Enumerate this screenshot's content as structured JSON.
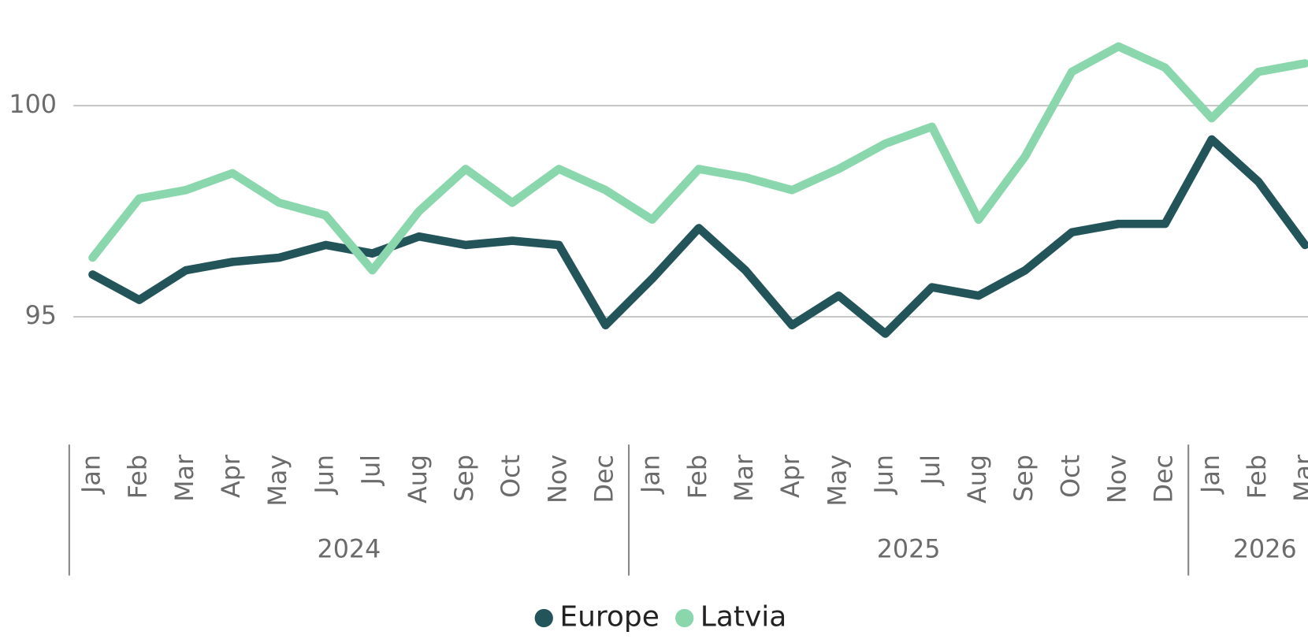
{
  "chart_data": {
    "type": "line",
    "categories": [
      "Jan",
      "Feb",
      "Mar",
      "Apr",
      "May",
      "Jun",
      "Jul",
      "Aug",
      "Sep",
      "Oct",
      "Nov",
      "Dec",
      "Jan",
      "Feb",
      "Mar",
      "Apr",
      "May",
      "Jun",
      "Jul",
      "Aug",
      "Sep",
      "Oct",
      "Nov",
      "Dec",
      "Jan",
      "Feb",
      "Mar"
    ],
    "years": [
      "2024",
      "2025",
      "2026"
    ],
    "series": [
      {
        "name": "Europe",
        "color": "#23545a",
        "values": [
          96.0,
          95.4,
          96.1,
          96.3,
          96.4,
          96.7,
          96.5,
          96.9,
          96.7,
          96.8,
          96.7,
          94.8,
          95.9,
          97.1,
          96.1,
          94.8,
          95.5,
          94.6,
          95.7,
          95.5,
          96.1,
          97.0,
          97.2,
          97.2,
          99.2,
          98.2,
          96.7
        ]
      },
      {
        "name": "Latvia",
        "color": "#8ad7ad",
        "values": [
          96.4,
          97.8,
          98.0,
          98.4,
          97.7,
          97.4,
          96.1,
          97.5,
          98.5,
          97.7,
          98.5,
          98.0,
          97.3,
          98.5,
          98.3,
          98.0,
          98.5,
          99.1,
          99.5,
          97.3,
          98.8,
          100.8,
          101.4,
          100.9,
          99.7,
          100.8,
          101.0
        ]
      }
    ],
    "ylim": [
      93,
      102.5
    ],
    "yticks": [
      95,
      100
    ],
    "grid": true,
    "legend": "bottom"
  }
}
